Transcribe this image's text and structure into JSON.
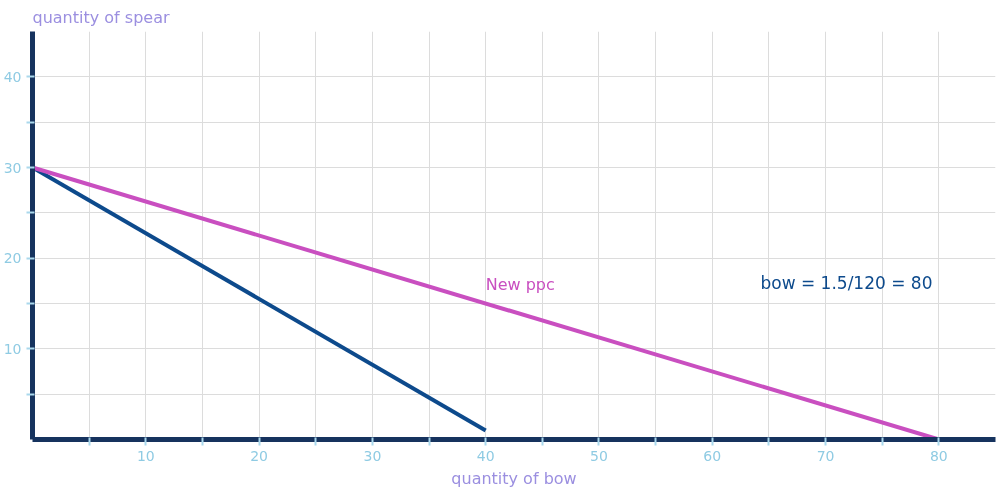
{
  "chart_data": {
    "type": "line",
    "ylabel": "quantity of spear",
    "xlabel": "quantity of bow",
    "xlim": [
      0,
      85
    ],
    "ylim": [
      0,
      45
    ],
    "xticks": [
      {
        "value": 5,
        "label": null
      },
      10,
      {
        "value": 15,
        "label": null
      },
      20,
      {
        "value": 25,
        "label": null
      },
      30,
      {
        "value": 35,
        "label": null
      },
      40,
      {
        "value": 45,
        "label": null
      },
      50,
      {
        "value": 55,
        "label": null
      },
      60,
      {
        "value": 65,
        "label": null
      },
      70,
      {
        "value": 75,
        "label": null
      },
      80
    ],
    "yticks": [
      {
        "value": 5,
        "label": null
      },
      10,
      {
        "value": 15,
        "label": null
      },
      20,
      {
        "value": 25,
        "label": null
      },
      30,
      {
        "value": 35,
        "label": null
      },
      40
    ],
    "grid": true,
    "marker": "none",
    "line_style": "solid",
    "series": [
      {
        "color": "#0d4a8c",
        "x": [
          0,
          40
        ],
        "values": [
          30,
          1
        ]
      },
      {
        "name": "New ppc",
        "color": "#c94fc0",
        "x": [
          0,
          80
        ],
        "values": [
          30,
          0
        ]
      }
    ],
    "annotations": [
      "bow = 1.5/120 = 80"
    ]
  }
}
